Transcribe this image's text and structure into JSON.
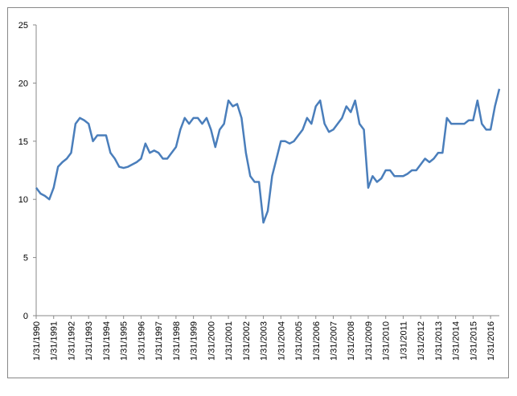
{
  "chart_data": {
    "type": "line",
    "color": "#4a7ebb",
    "categories": [
      "1/31/1990",
      null,
      null,
      null,
      "1/31/1991",
      null,
      null,
      null,
      "1/31/1992",
      null,
      null,
      null,
      "1/31/1993",
      null,
      null,
      null,
      "1/31/1994",
      null,
      null,
      null,
      "1/31/1995",
      null,
      null,
      null,
      "1/31/1996",
      null,
      null,
      null,
      "1/31/1997",
      null,
      null,
      null,
      "1/31/1998",
      null,
      null,
      null,
      "1/31/1999",
      null,
      null,
      null,
      "1/31/2000",
      null,
      null,
      null,
      "1/31/2001",
      null,
      null,
      null,
      "1/31/2002",
      null,
      null,
      null,
      "1/31/2003",
      null,
      null,
      null,
      "1/31/2004",
      null,
      null,
      null,
      "1/31/2005",
      null,
      null,
      null,
      "1/31/2006",
      null,
      null,
      null,
      "1/31/2007",
      null,
      null,
      null,
      "1/31/2008",
      null,
      null,
      null,
      "1/31/2009",
      null,
      null,
      null,
      "1/31/2010",
      null,
      null,
      null,
      "1/31/2011",
      null,
      null,
      null,
      "1/31/2012",
      null,
      null,
      null,
      "1/31/2013",
      null,
      null,
      null,
      "1/31/2014",
      null,
      null,
      null,
      "1/31/2015",
      null,
      null,
      null,
      "1/31/2016",
      null,
      null
    ],
    "values": [
      11,
      10.5,
      10.3,
      10,
      11,
      12.8,
      13.2,
      13.5,
      14,
      16.5,
      17,
      16.8,
      16.5,
      15,
      15.5,
      15.5,
      15.5,
      14,
      13.5,
      12.8,
      12.7,
      12.8,
      13,
      13.2,
      13.5,
      14.8,
      14,
      14.2,
      14,
      13.5,
      13.5,
      14,
      14.5,
      16,
      17,
      16.5,
      17,
      17,
      16.5,
      17,
      16,
      14.5,
      16,
      16.5,
      18.5,
      18,
      18.2,
      17,
      14,
      12,
      11.5,
      11.5,
      8,
      9,
      12,
      13.5,
      15,
      15,
      14.8,
      15,
      15.5,
      16,
      17,
      16.5,
      18,
      18.5,
      16.5,
      15.8,
      16,
      16.5,
      17,
      18,
      17.5,
      18.5,
      16.5,
      16,
      11,
      12,
      11.5,
      11.8,
      12.5,
      12.5,
      12,
      12,
      12,
      12.2,
      12.5,
      12.5,
      13,
      13.5,
      13.2,
      13.5,
      14,
      14,
      17,
      16.5,
      16.5,
      16.5,
      16.5,
      16.8,
      16.8,
      18.5,
      16.5,
      16,
      16,
      18,
      19.5
    ],
    "ylim": [
      0,
      25
    ],
    "yticks": [
      0,
      5,
      10,
      15,
      20,
      25
    ]
  }
}
